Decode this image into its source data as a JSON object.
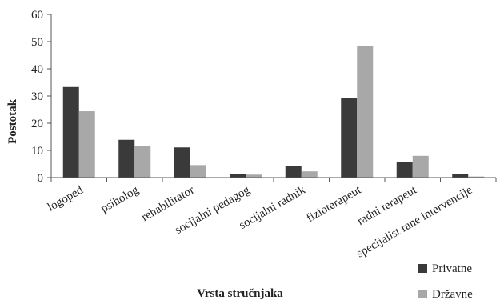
{
  "chart_data": {
    "type": "bar",
    "xlabel": "Vrsta stručnjaka",
    "ylabel": "Postotak",
    "ylim": [
      0,
      60
    ],
    "yticks": [
      0,
      10,
      20,
      30,
      40,
      50,
      60
    ],
    "grid": false,
    "legend_position": "bottom-right",
    "categories": [
      "logoped",
      "psiholog",
      "rehabilitator",
      "socijalni pedagog",
      "socijalni radnik",
      "fizioterapeut",
      "radni terapeut",
      "specijalist rane intervencije"
    ],
    "series": [
      {
        "name": "Privatne",
        "color": "#3a3a3a",
        "values": [
          33.3,
          13.9,
          11.1,
          1.4,
          4.2,
          29.2,
          5.6,
          1.4
        ]
      },
      {
        "name": "Državne",
        "color": "#a8a8a8",
        "values": [
          24.4,
          11.5,
          4.6,
          1.1,
          2.3,
          48.3,
          8.0,
          0.4
        ]
      }
    ]
  }
}
